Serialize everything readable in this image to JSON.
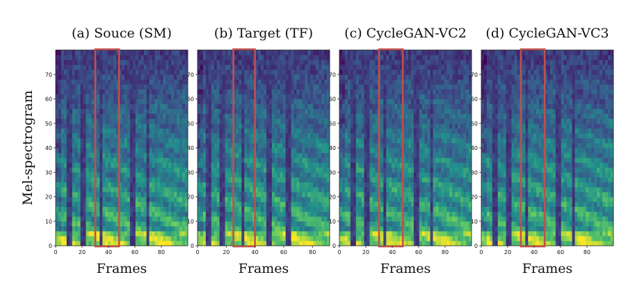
{
  "chart_data": {
    "type": "heatmap",
    "ylabel": "Mel-spectrogram",
    "colormap": [
      "#440154",
      "#3b528b",
      "#21918c",
      "#5ec962",
      "#fde725"
    ],
    "highlight_color": "#c0504d",
    "panels": [
      {
        "title": "(a) Souce (SM)",
        "xlabel": "Frames",
        "xlim": [
          0,
          100
        ],
        "ylim": [
          0,
          80
        ],
        "xticks": [
          0,
          20,
          40,
          60,
          80
        ],
        "yticks": [
          0,
          10,
          20,
          30,
          40,
          50,
          60,
          70
        ],
        "highlight": {
          "x": [
            30,
            48
          ],
          "y": [
            0,
            80
          ]
        },
        "silent_frames": [
          [
            8,
            12
          ],
          [
            19,
            23
          ],
          [
            34,
            36
          ],
          [
            57,
            61
          ],
          [
            68,
            71
          ]
        ]
      },
      {
        "title": "(b) Target (TF)",
        "xlabel": "Frames",
        "xlim": [
          0,
          92
        ],
        "ylim": [
          0,
          80
        ],
        "xticks": [
          0,
          20,
          40,
          60,
          80
        ],
        "yticks": [
          0,
          10,
          20,
          30,
          40,
          50,
          60,
          70
        ],
        "highlight": {
          "x": [
            25,
            40
          ],
          "y": [
            0,
            80
          ]
        },
        "silent_frames": [
          [
            6,
            10
          ],
          [
            16,
            20
          ],
          [
            30,
            32
          ],
          [
            48,
            52
          ],
          [
            62,
            65
          ]
        ]
      },
      {
        "title": "(c) CycleGAN-VC2",
        "xlabel": "Frames",
        "xlim": [
          0,
          100
        ],
        "ylim": [
          0,
          80
        ],
        "xticks": [
          0,
          20,
          40,
          60,
          80
        ],
        "yticks": [
          0,
          10,
          20,
          30,
          40,
          50,
          60,
          70
        ],
        "highlight": {
          "x": [
            30,
            48
          ],
          "y": [
            0,
            80
          ]
        },
        "silent_frames": [
          [
            8,
            12
          ],
          [
            19,
            23
          ],
          [
            34,
            36
          ],
          [
            57,
            61
          ],
          [
            68,
            71
          ]
        ]
      },
      {
        "title": "(d) CycleGAN-VC3",
        "xlabel": "Frames",
        "xlim": [
          0,
          100
        ],
        "ylim": [
          0,
          80
        ],
        "xticks": [
          0,
          20,
          40,
          60,
          80
        ],
        "yticks": [
          0,
          10,
          20,
          30,
          40,
          50,
          60,
          70
        ],
        "highlight": {
          "x": [
            30,
            48
          ],
          "y": [
            0,
            80
          ]
        },
        "silent_frames": [
          [
            8,
            12
          ],
          [
            19,
            23
          ],
          [
            34,
            36
          ],
          [
            57,
            61
          ],
          [
            68,
            71
          ]
        ]
      }
    ]
  }
}
